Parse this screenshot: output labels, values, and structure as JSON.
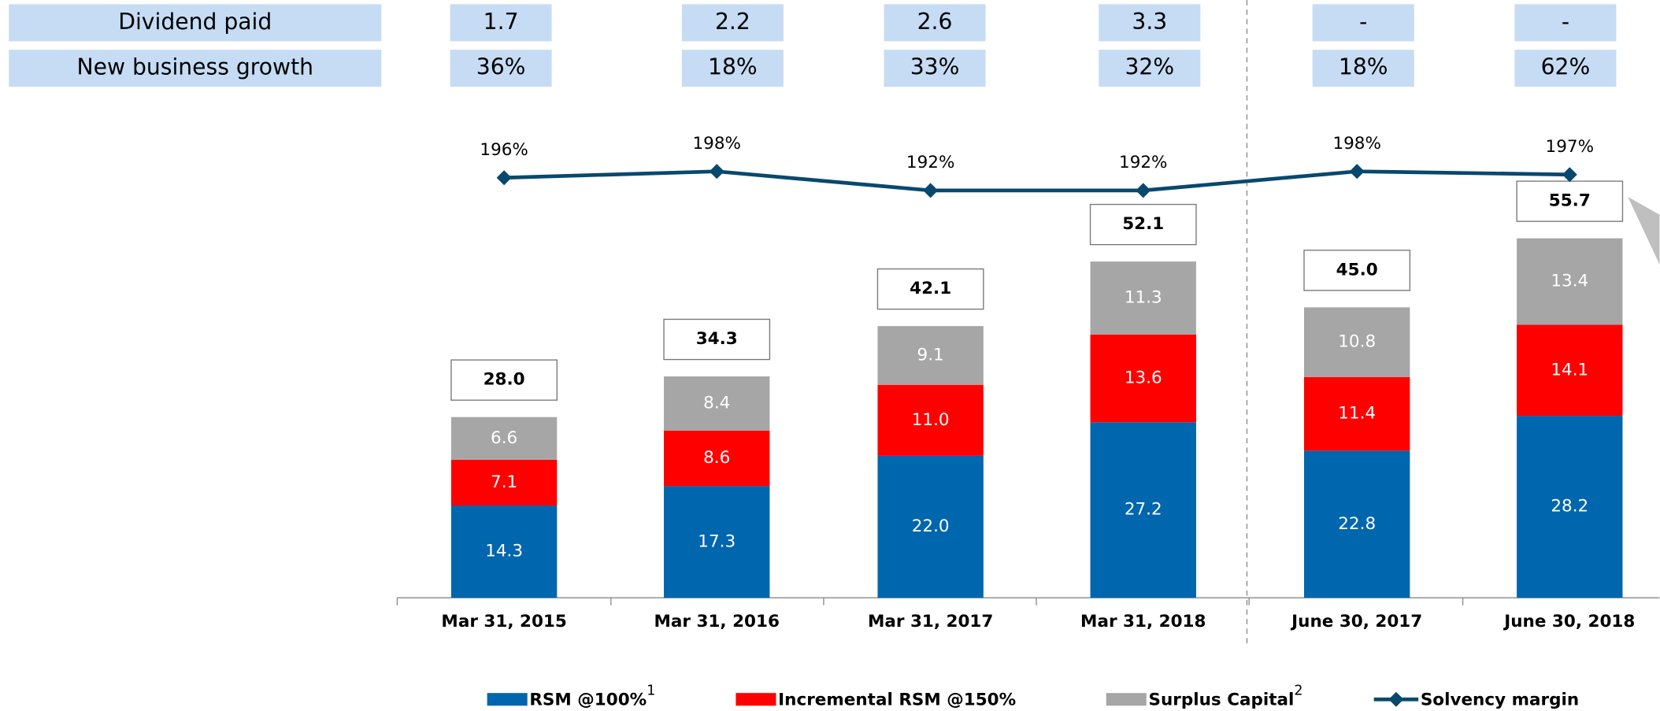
{
  "table": {
    "rows": [
      {
        "label": "Dividend paid",
        "cells": [
          "1.7",
          "2.2",
          "2.6",
          "3.3",
          "-",
          "-"
        ]
      },
      {
        "label": "New business growth",
        "cells": [
          "36%",
          "18%",
          "33%",
          "32%",
          "18%",
          "62%"
        ]
      }
    ]
  },
  "chart_data": {
    "type": "stacked-bar-line",
    "categories": [
      "Mar 31, 2015",
      "Mar 31, 2016",
      "Mar 31, 2017",
      "Mar 31, 2018",
      "June 30, 2017",
      "June 30, 2018"
    ],
    "ylim": [
      0,
      90
    ],
    "y2lim": [
      150,
      210
    ],
    "series": [
      {
        "name": "RSM @100%",
        "note": "1",
        "color": "#0066ae",
        "values": [
          14.3,
          17.3,
          22.0,
          27.2,
          22.8,
          28.2
        ],
        "value_labels": [
          "14.3",
          "17.3",
          "22.0",
          "27.2",
          "22.8",
          "28.2"
        ]
      },
      {
        "name": "Incremental RSM @150%",
        "color": "#ff0000",
        "values": [
          7.1,
          8.6,
          11.0,
          13.6,
          11.4,
          14.1
        ],
        "value_labels": [
          "7.1",
          "8.6",
          "11.0",
          "13.6",
          "11.4",
          "14.1"
        ]
      },
      {
        "name": "Surplus Capital",
        "note": "2",
        "color": "#a6a6a6",
        "values": [
          6.6,
          8.4,
          9.1,
          11.3,
          10.8,
          13.4
        ],
        "value_labels": [
          "6.6",
          "8.4",
          "9.1",
          "11.3",
          "10.8",
          "13.4"
        ]
      },
      {
        "name": "Solvency margin",
        "color": "#08486e",
        "axis": "y2",
        "values": [
          196,
          198,
          192,
          192,
          198,
          197
        ],
        "value_labels": [
          "196%",
          "198%",
          "192%",
          "192%",
          "198%",
          "197%"
        ]
      }
    ],
    "totals": {
      "values": [
        28.0,
        34.3,
        42.1,
        52.1,
        45.0,
        55.7
      ],
      "value_labels": [
        "28.0",
        "34.3",
        "42.1",
        "52.1",
        "45.0",
        "55.7"
      ]
    }
  }
}
